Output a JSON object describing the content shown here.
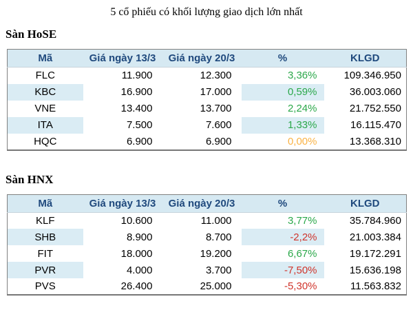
{
  "title": "5 cổ phiếu có khối lượng giao dịch lớn nhất",
  "colors": {
    "header_text": "#1f497d",
    "header_bg": "#d6e9f2",
    "alt_cell_bg": "#daecf4",
    "border": "#808080",
    "up": "#2ba84a",
    "down": "#d0342b",
    "flat": "#fab345"
  },
  "chart_data": [
    {
      "type": "table",
      "title": "Sàn HoSE",
      "columns": [
        "Mã",
        "Giá ngày 13/3",
        "Giá ngày 20/3",
        "%",
        "KLGD"
      ],
      "rows": [
        {
          "ma": "FLC",
          "gia_13_3": "11.900",
          "gia_20_3": "12.300",
          "pct": "3,36%",
          "trend": "up",
          "klgd": "109.346.950"
        },
        {
          "ma": "KBC",
          "gia_13_3": "16.900",
          "gia_20_3": "17.000",
          "pct": "0,59%",
          "trend": "up",
          "klgd": "36.003.060"
        },
        {
          "ma": "VNE",
          "gia_13_3": "13.400",
          "gia_20_3": "13.700",
          "pct": "2,24%",
          "trend": "up",
          "klgd": "21.752.550"
        },
        {
          "ma": "ITA",
          "gia_13_3": "7.500",
          "gia_20_3": "7.600",
          "pct": "1,33%",
          "trend": "up",
          "klgd": "16.115.470"
        },
        {
          "ma": "HQC",
          "gia_13_3": "6.900",
          "gia_20_3": "6.900",
          "pct": "0,00%",
          "trend": "flat",
          "klgd": "13.368.310"
        }
      ]
    },
    {
      "type": "table",
      "title": "Sàn HNX",
      "columns": [
        "Mã",
        "Giá ngày 13/3",
        "Giá ngày 20/3",
        "%",
        "KLGD"
      ],
      "rows": [
        {
          "ma": "KLF",
          "gia_13_3": "10.600",
          "gia_20_3": "11.000",
          "pct": "3,77%",
          "trend": "up",
          "klgd": "35.784.960"
        },
        {
          "ma": "SHB",
          "gia_13_3": "8.900",
          "gia_20_3": "8.700",
          "pct": "-2,2%",
          "trend": "down",
          "klgd": "21.003.384"
        },
        {
          "ma": "FIT",
          "gia_13_3": "18.000",
          "gia_20_3": "19.200",
          "pct": "6,67%",
          "trend": "up",
          "klgd": "19.172.291"
        },
        {
          "ma": "PVR",
          "gia_13_3": "4.000",
          "gia_20_3": "3.700",
          "pct": "-7,50%",
          "trend": "down",
          "klgd": "15.636.198"
        },
        {
          "ma": "PVS",
          "gia_13_3": "26.400",
          "gia_20_3": "25.000",
          "pct": "-5,30%",
          "trend": "down",
          "klgd": "11.563.832"
        }
      ]
    }
  ]
}
